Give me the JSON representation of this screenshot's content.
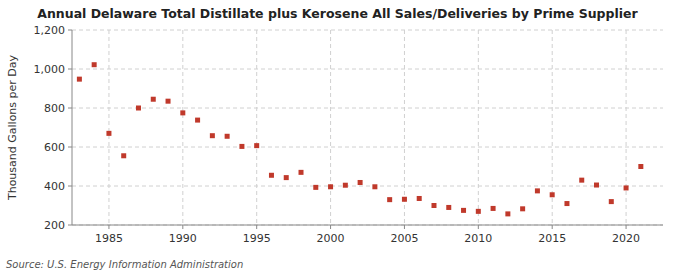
{
  "chart_data": {
    "type": "scatter",
    "title": "Annual Delaware Total Distillate plus Kerosene All Sales/Deliveries by Prime Supplier",
    "ylabel": "Thousand Gallons per Day",
    "source": "Source: U.S. Energy Information Administration",
    "x": [
      1983,
      1984,
      1985,
      1986,
      1987,
      1988,
      1989,
      1990,
      1991,
      1992,
      1993,
      1994,
      1995,
      1996,
      1997,
      1998,
      1999,
      2000,
      2001,
      2002,
      2003,
      2004,
      2005,
      2006,
      2007,
      2008,
      2009,
      2010,
      2011,
      2012,
      2013,
      2014,
      2015,
      2016,
      2017,
      2018,
      2019,
      2020,
      2021
    ],
    "values": [
      948,
      1022,
      670,
      555,
      800,
      845,
      835,
      775,
      738,
      658,
      655,
      603,
      607,
      455,
      443,
      470,
      393,
      396,
      404,
      418,
      396,
      330,
      332,
      336,
      300,
      290,
      275,
      270,
      285,
      257,
      283,
      375,
      355,
      310,
      430,
      405,
      320,
      390,
      500
    ],
    "color": "#c0392b",
    "marker": "square",
    "xlim": [
      1982.5,
      2022.5
    ],
    "xticks": [
      1985,
      1990,
      1995,
      2000,
      2005,
      2010,
      2015,
      2020
    ],
    "ylim": [
      200,
      1200
    ],
    "yticks": [
      200,
      400,
      600,
      800,
      {
        "value": 1000,
        "label": "1,000"
      },
      {
        "value": 1200,
        "label": "1,200"
      }
    ],
    "grid": true
  }
}
